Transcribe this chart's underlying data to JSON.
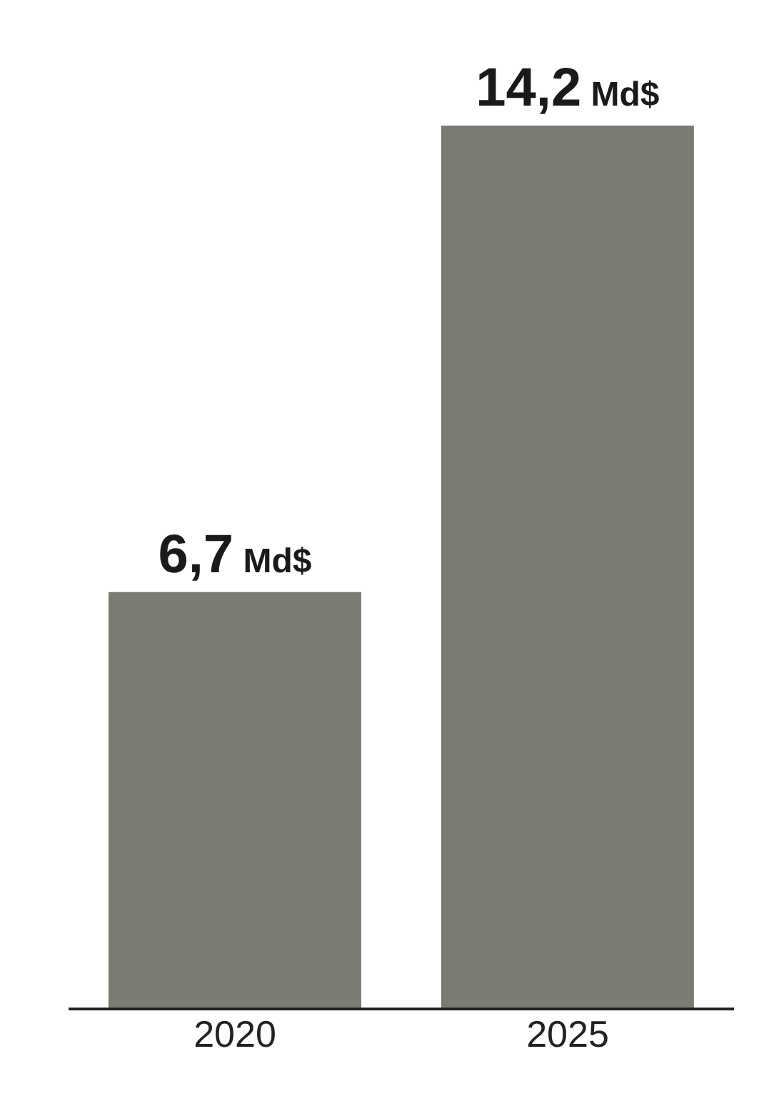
{
  "chart_data": {
    "type": "bar",
    "categories": [
      "2020",
      "2025"
    ],
    "values": [
      6.7,
      14.2
    ],
    "color": "#7a7c72",
    "value_labels": [
      "6,7 Md$",
      "14,2 Md$"
    ]
  }
}
